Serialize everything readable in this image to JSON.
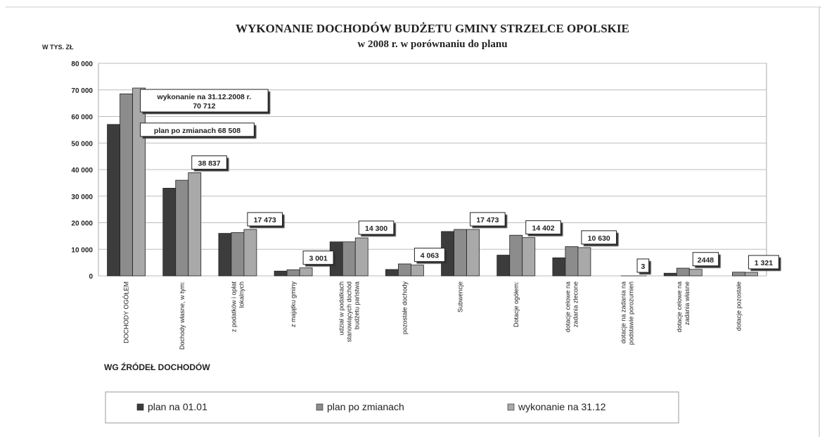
{
  "chart_data": {
    "type": "bar",
    "title": "WYKONANIE DOCHODÓW BUDŻETU GMINY STRZELCE OPOLSKIE",
    "subtitle": "w 2008 r.  w porównaniu do planu",
    "y_label": "W TYS. ZŁ",
    "x_label": "WG ŹRÓDEŁ DOCHODÓW",
    "categories": [
      "DOCHODY OGÓŁEM",
      "Dochody własne, w tym:",
      "z podatków i opłat\nlokalnych",
      "z majątku gminy",
      "udział w podatkach\nstanowiących dochód\nbudżetu państwa",
      "pozostałe dochody",
      "Subwencje",
      "Dotacje ogółem:",
      "dotacje celowe na\nzadania zlecone",
      "dotacje na zadania na\npodstawie porozumień",
      "dotacje celowe na\nzadania własne",
      "dotacje pozostałe"
    ],
    "series": [
      {
        "name": "plan na 01.01",
        "color": "#3c3c3c",
        "values": [
          57000,
          33000,
          16000,
          1800,
          12800,
          2400,
          16700,
          7800,
          6800,
          0,
          1000,
          0
        ]
      },
      {
        "name": "plan po zmianach",
        "color": "#8c8c8c",
        "values": [
          68508,
          36000,
          16300,
          2300,
          12800,
          4500,
          17473,
          15300,
          11000,
          3,
          2900,
          1400
        ]
      },
      {
        "name": "wykonanie na 31.12",
        "color": "#a9a9a9",
        "values": [
          70712,
          38837,
          17473,
          3001,
          14300,
          4063,
          17473,
          14402,
          10630,
          3,
          2448,
          1321
        ],
        "value_labels": [
          "70 712",
          "38 837",
          "17 473",
          "3 001",
          "14 300",
          "4 063",
          "17 473",
          "14 402",
          "10 630",
          "3",
          "2448",
          "1 321"
        ]
      }
    ],
    "annotations": [
      "wykonanie na 31.12.2008 r.",
      "plan po zmianach 68 508"
    ],
    "ylim": [
      0,
      80000
    ],
    "yticks": [
      {
        "value": 0,
        "label": "0"
      },
      {
        "value": 10000,
        "label": "10 000"
      },
      {
        "value": 20000,
        "label": "20 000"
      },
      {
        "value": 30000,
        "label": "30 000"
      },
      {
        "value": 40000,
        "label": "40 000"
      },
      {
        "value": 50000,
        "label": "50 000"
      },
      {
        "value": 60000,
        "label": "60 000"
      },
      {
        "value": 70000,
        "label": "70 000"
      },
      {
        "value": 80000,
        "label": "80 000"
      }
    ],
    "grid": true,
    "legend": "bottom"
  }
}
